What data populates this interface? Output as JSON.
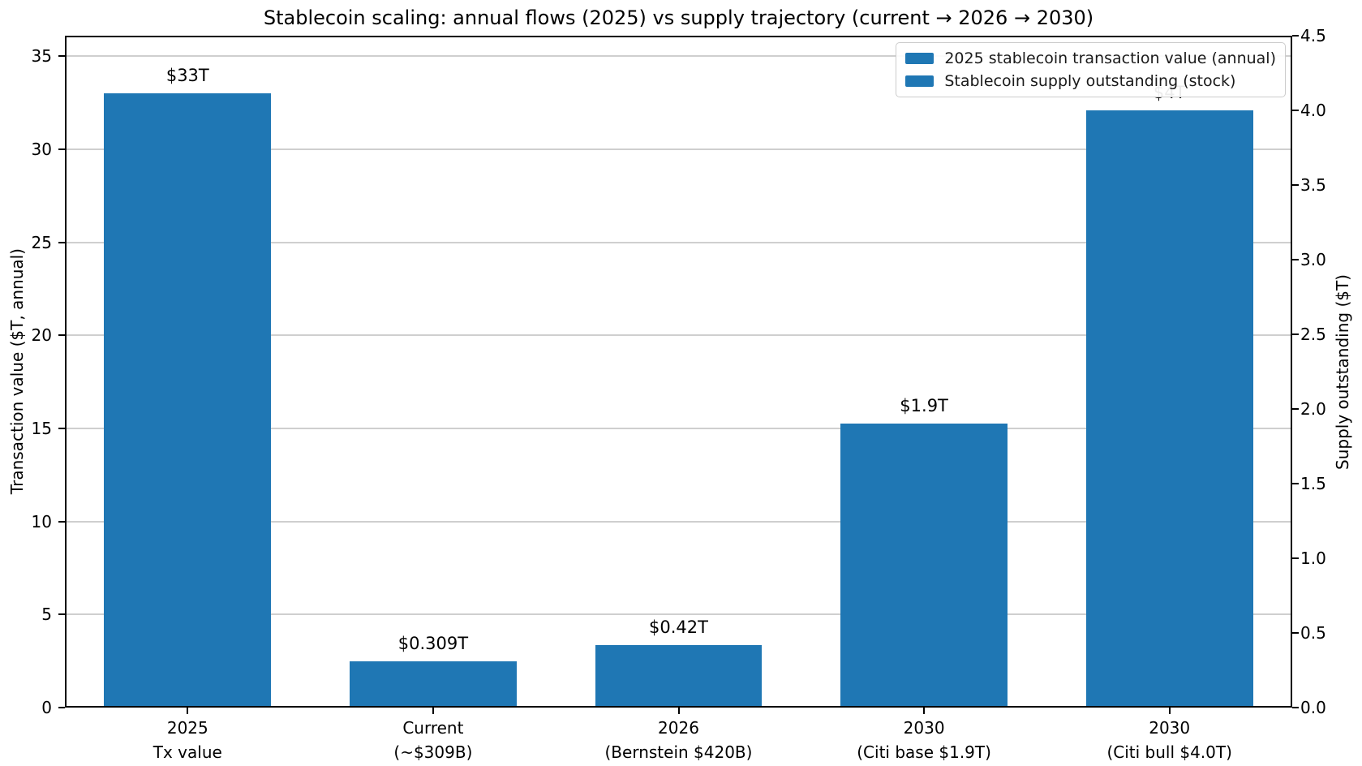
{
  "chart_data": {
    "type": "bar",
    "title": "Stablecoin scaling: annual flows (2025) vs supply trajectory (current → 2026 → 2030)",
    "categories": [
      "2025\nTx value",
      "Current\n(~$309B)",
      "2026\n(Bernstein $420B)",
      "2030\n(Citi base $1.9T)",
      "2030\n(Citi bull $4.0T)"
    ],
    "series": [
      {
        "name": "2025 stablecoin transaction value (annual)",
        "axis": "left",
        "values": [
          33,
          null,
          null,
          null,
          null
        ]
      },
      {
        "name": "Stablecoin supply outstanding (stock)",
        "axis": "right",
        "values": [
          null,
          0.309,
          0.42,
          1.9,
          4.0
        ]
      }
    ],
    "bar_values": [
      33,
      0.309,
      0.42,
      1.9,
      4.0
    ],
    "bar_axis": [
      "left",
      "right",
      "right",
      "right",
      "right"
    ],
    "bar_value_labels": [
      "$33T",
      "$0.309T",
      "$0.42T",
      "$1.9T",
      "$4T"
    ],
    "left_axis": {
      "label": "Transaction value ($T, annual)",
      "tick_labels": [
        "0",
        "5",
        "10",
        "15",
        "20",
        "25",
        "30",
        "35"
      ],
      "tick_values": [
        0,
        5,
        10,
        15,
        20,
        25,
        30,
        35
      ],
      "ylim": [
        0,
        36.1
      ]
    },
    "right_axis": {
      "label": "Supply outstanding ($T)",
      "tick_labels": [
        "0.0",
        "0.5",
        "1.0",
        "1.5",
        "2.0",
        "2.5",
        "3.0",
        "3.5",
        "4.0",
        "4.5"
      ],
      "tick_values": [
        0,
        0.5,
        1,
        1.5,
        2,
        2.5,
        3,
        3.5,
        4,
        4.5
      ],
      "ylim": [
        0,
        4.5
      ]
    },
    "legend": {
      "position": "upper right"
    },
    "grid": true,
    "colors": {
      "bar": "#1f77b4",
      "grid": "#cfcfcf",
      "spine": "#000000",
      "background": "#ffffff"
    }
  }
}
